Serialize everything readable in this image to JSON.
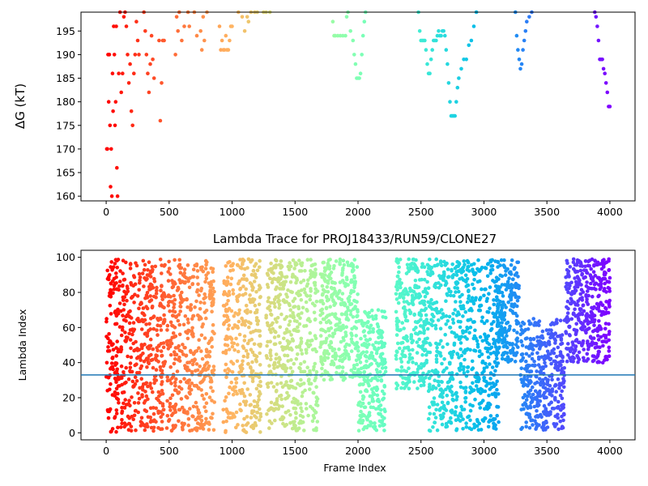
{
  "chart_data": [
    {
      "type": "scatter",
      "title": "",
      "xlabel": "",
      "ylabel": "ΔG (kT)",
      "xlim": [
        -200,
        4200
      ],
      "ylim": [
        159,
        199
      ],
      "xticks": [
        0,
        500,
        1000,
        1500,
        2000,
        2500,
        3000,
        3500,
        4000
      ],
      "yticks": [
        160,
        165,
        170,
        175,
        180,
        185,
        190,
        195
      ],
      "xtick_labels": [
        "0",
        "500",
        "1000",
        "1500",
        "2000",
        "2500",
        "3000",
        "3500",
        "4000"
      ],
      "ytick_labels": [
        "160",
        "165",
        "170",
        "175",
        "180",
        "185",
        "190",
        "195"
      ],
      "colormap": "rainbow (red → violet by frame index)",
      "grid": false,
      "legend": "none",
      "series": [
        {
          "color_scale": "frame",
          "points": [
            [
              5,
              170
            ],
            [
              10,
              170
            ],
            [
              15,
              190
            ],
            [
              20,
              180
            ],
            [
              25,
              190
            ],
            [
              30,
              175
            ],
            [
              35,
              162
            ],
            [
              40,
              170
            ],
            [
              45,
              160
            ],
            [
              50,
              186
            ],
            [
              55,
              178
            ],
            [
              60,
              196
            ],
            [
              65,
              190
            ],
            [
              70,
              175
            ],
            [
              75,
              180
            ],
            [
              80,
              196
            ],
            [
              85,
              166
            ],
            [
              90,
              160
            ],
            [
              100,
              186
            ],
            [
              110,
              199
            ],
            [
              120,
              182
            ],
            [
              130,
              186
            ],
            [
              140,
              198
            ],
            [
              150,
              199
            ],
            [
              160,
              196
            ],
            [
              170,
              190
            ],
            [
              180,
              184
            ],
            [
              190,
              188
            ],
            [
              200,
              178
            ],
            [
              210,
              175
            ],
            [
              220,
              186
            ],
            [
              230,
              190
            ],
            [
              240,
              197
            ],
            [
              250,
              193
            ],
            [
              260,
              190
            ],
            [
              300,
              199
            ],
            [
              310,
              195
            ],
            [
              320,
              190
            ],
            [
              330,
              186
            ],
            [
              340,
              182
            ],
            [
              350,
              188
            ],
            [
              360,
              194
            ],
            [
              370,
              189
            ],
            [
              380,
              185
            ],
            [
              420,
              193
            ],
            [
              430,
              176
            ],
            [
              440,
              184
            ],
            [
              450,
              193
            ],
            [
              460,
              193
            ],
            [
              550,
              190
            ],
            [
              560,
              198
            ],
            [
              570,
              195
            ],
            [
              580,
              199
            ],
            [
              600,
              193
            ],
            [
              620,
              196
            ],
            [
              650,
              199
            ],
            [
              660,
              196
            ],
            [
              700,
              199
            ],
            [
              720,
              194
            ],
            [
              750,
              195
            ],
            [
              760,
              191
            ],
            [
              770,
              198
            ],
            [
              780,
              193
            ],
            [
              800,
              199
            ],
            [
              900,
              196
            ],
            [
              910,
              191
            ],
            [
              920,
              193
            ],
            [
              930,
              191
            ],
            [
              940,
              191
            ],
            [
              950,
              194
            ],
            [
              960,
              191
            ],
            [
              970,
              191
            ],
            [
              980,
              193
            ],
            [
              990,
              196
            ],
            [
              1000,
              196
            ],
            [
              1050,
              199
            ],
            [
              1080,
              198
            ],
            [
              1100,
              195
            ],
            [
              1120,
              198
            ],
            [
              1130,
              197
            ],
            [
              1150,
              199
            ],
            [
              1180,
              199
            ],
            [
              1200,
              199
            ],
            [
              1250,
              199
            ],
            [
              1270,
              199
            ],
            [
              1300,
              199
            ],
            [
              1800,
              197
            ],
            [
              1810,
              194
            ],
            [
              1820,
              194
            ],
            [
              1840,
              194
            ],
            [
              1860,
              194
            ],
            [
              1880,
              194
            ],
            [
              1900,
              194
            ],
            [
              1910,
              198
            ],
            [
              1920,
              199
            ],
            [
              1940,
              195
            ],
            [
              1960,
              193
            ],
            [
              1970,
              190
            ],
            [
              1980,
              188
            ],
            [
              1990,
              185
            ],
            [
              2000,
              185
            ],
            [
              2010,
              185
            ],
            [
              2020,
              186
            ],
            [
              2030,
              190
            ],
            [
              2040,
              194
            ],
            [
              2050,
              197
            ],
            [
              2060,
              199
            ],
            [
              2480,
              199
            ],
            [
              2490,
              195
            ],
            [
              2500,
              193
            ],
            [
              2510,
              193
            ],
            [
              2520,
              193
            ],
            [
              2530,
              193
            ],
            [
              2540,
              191
            ],
            [
              2550,
              188
            ],
            [
              2560,
              186
            ],
            [
              2570,
              186
            ],
            [
              2580,
              189
            ],
            [
              2590,
              191
            ],
            [
              2600,
              193
            ],
            [
              2610,
              193
            ],
            [
              2620,
              193
            ],
            [
              2630,
              194
            ],
            [
              2640,
              195
            ],
            [
              2650,
              194
            ],
            [
              2660,
              194
            ],
            [
              2670,
              195
            ],
            [
              2680,
              195
            ],
            [
              2690,
              194
            ],
            [
              2700,
              191
            ],
            [
              2710,
              188
            ],
            [
              2720,
              184
            ],
            [
              2730,
              180
            ],
            [
              2740,
              177
            ],
            [
              2750,
              177
            ],
            [
              2760,
              177
            ],
            [
              2770,
              177
            ],
            [
              2780,
              180
            ],
            [
              2790,
              183
            ],
            [
              2800,
              185
            ],
            [
              2820,
              187
            ],
            [
              2840,
              189
            ],
            [
              2860,
              189
            ],
            [
              2880,
              192
            ],
            [
              2900,
              193
            ],
            [
              2920,
              196
            ],
            [
              2940,
              199
            ],
            [
              3250,
              199
            ],
            [
              3260,
              194
            ],
            [
              3270,
              191
            ],
            [
              3280,
              189
            ],
            [
              3290,
              187
            ],
            [
              3300,
              188
            ],
            [
              3310,
              191
            ],
            [
              3320,
              193
            ],
            [
              3330,
              195
            ],
            [
              3340,
              197
            ],
            [
              3360,
              198
            ],
            [
              3380,
              199
            ],
            [
              3880,
              199
            ],
            [
              3890,
              198
            ],
            [
              3900,
              196
            ],
            [
              3910,
              193
            ],
            [
              3920,
              189
            ],
            [
              3930,
              189
            ],
            [
              3940,
              189
            ],
            [
              3950,
              187
            ],
            [
              3960,
              186
            ],
            [
              3970,
              184
            ],
            [
              3980,
              182
            ],
            [
              3990,
              179
            ],
            [
              4000,
              179
            ]
          ]
        }
      ]
    },
    {
      "type": "scatter",
      "title": "Lambda Trace for PROJ18433/RUN59/CLONE27",
      "xlabel": "Frame Index",
      "ylabel": "Lambda Index",
      "xlim": [
        -200,
        4200
      ],
      "ylim": [
        -4,
        104
      ],
      "xticks": [
        0,
        500,
        1000,
        1500,
        2000,
        2500,
        3000,
        3500,
        4000
      ],
      "yticks": [
        0,
        20,
        40,
        60,
        80,
        100
      ],
      "xtick_labels": [
        "0",
        "500",
        "1000",
        "1500",
        "2000",
        "2500",
        "3000",
        "3500",
        "4000"
      ],
      "ytick_labels": [
        "0",
        "20",
        "40",
        "60",
        "80",
        "100"
      ],
      "reference_line": {
        "y": 33,
        "color": "#1f77b4"
      },
      "colormap": "rainbow (red → violet by frame index)",
      "grid": false,
      "legend": "none",
      "sampled_traces": {
        "note_frames": "frame range per band",
        "bands": [
          {
            "x_range": [
              0,
              120
            ],
            "y_range": [
              0,
              99
            ]
          },
          {
            "x_range": [
              120,
              470
            ],
            "y_range": [
              1,
              99
            ]
          },
          {
            "x_range": [
              480,
              860
            ],
            "y_range": [
              1,
              99
            ]
          },
          {
            "x_range": [
              930,
              1230
            ],
            "y_range": [
              0,
              99
            ]
          },
          {
            "x_range": [
              1270,
              1680
            ],
            "y_range": [
              1,
              99
            ]
          },
          {
            "x_range": [
              1700,
              2000
            ],
            "y_range": [
              30,
              99
            ]
          },
          {
            "x_range": [
              2000,
              2220
            ],
            "y_range": [
              1,
              70
            ]
          },
          {
            "x_range": [
              2300,
              2560
            ],
            "y_range": [
              25,
              99
            ]
          },
          {
            "x_range": [
              2560,
              2740
            ],
            "y_range": [
              1,
              99
            ]
          },
          {
            "x_range": [
              2740,
              3120
            ],
            "y_range": [
              1,
              99
            ]
          },
          {
            "x_range": [
              3100,
              3280
            ],
            "y_range": [
              40,
              99
            ]
          },
          {
            "x_range": [
              3290,
              3640
            ],
            "y_range": [
              1,
              65
            ]
          },
          {
            "x_range": [
              3650,
              4000
            ],
            "y_range": [
              40,
              99
            ]
          }
        ]
      }
    }
  ]
}
